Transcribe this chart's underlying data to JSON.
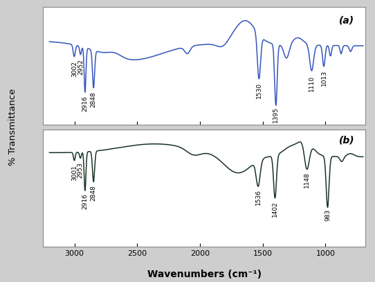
{
  "title_a": "(a)",
  "title_b": "(b)",
  "xlabel": "Wavenumbers (cm⁻¹)",
  "ylabel": "% Transmittance",
  "color_a": "#3355bb",
  "color_b": "#1a3325",
  "bg_color": "#d8d8d8",
  "panel_bg": "#ffffff",
  "annotations_a": [
    "3002",
    "2952",
    "2916",
    "2848",
    "1530",
    "1395",
    "1110",
    "1013"
  ],
  "annotations_b": [
    "3001",
    "2953",
    "2916",
    "2848",
    "1536",
    "1402",
    "1148",
    "983"
  ]
}
